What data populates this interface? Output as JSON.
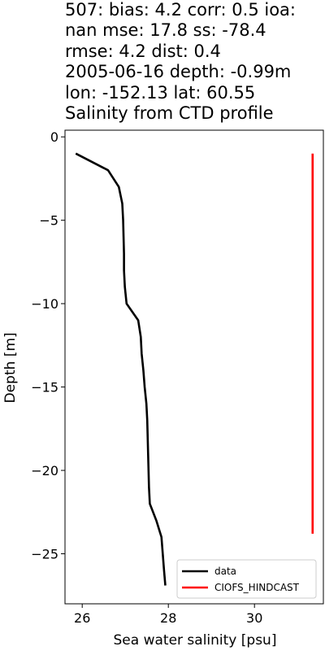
{
  "title_lines": [
    "507: bias: 4.2  corr: 0.5  ioa:",
    "nan  mse: 17.8  ss: -78.4",
    "rmse: 4.2  dist: 0.4",
    "2005-06-16 depth: -0.99m",
    "lon: -152.13 lat: 60.55",
    "Salinity from CTD profile"
  ],
  "chart_data": {
    "type": "line",
    "title": "Salinity from CTD profile",
    "xlabel": "Sea water salinity [psu]",
    "ylabel": "Depth [m]",
    "xlim": [
      25.6,
      31.6
    ],
    "ylim": [
      -28.0,
      0.4
    ],
    "xticks": [
      26,
      28,
      30
    ],
    "yticks": [
      0,
      -5,
      -10,
      -15,
      -20,
      -25
    ],
    "xtick_labels": [
      "26",
      "28",
      "30"
    ],
    "ytick_labels": [
      "0",
      "−5",
      "−10",
      "−15",
      "−20",
      "−25"
    ],
    "grid": false,
    "legend": "lower-right",
    "series": [
      {
        "name": "data",
        "color": "#000000",
        "points": [
          [
            25.85,
            -1.0
          ],
          [
            26.6,
            -2.0
          ],
          [
            26.85,
            -3.0
          ],
          [
            26.93,
            -4.0
          ],
          [
            26.95,
            -5.0
          ],
          [
            26.96,
            -6.0
          ],
          [
            26.97,
            -7.0
          ],
          [
            26.97,
            -8.0
          ],
          [
            26.99,
            -9.0
          ],
          [
            27.03,
            -10.0
          ],
          [
            27.3,
            -11.0
          ],
          [
            27.36,
            -12.0
          ],
          [
            27.38,
            -13.0
          ],
          [
            27.42,
            -14.0
          ],
          [
            27.45,
            -15.0
          ],
          [
            27.49,
            -16.0
          ],
          [
            27.51,
            -17.0
          ],
          [
            27.52,
            -18.0
          ],
          [
            27.53,
            -19.0
          ],
          [
            27.54,
            -20.0
          ],
          [
            27.55,
            -21.0
          ],
          [
            27.57,
            -22.0
          ],
          [
            27.72,
            -23.0
          ],
          [
            27.84,
            -24.0
          ],
          [
            27.87,
            -25.0
          ],
          [
            27.9,
            -26.0
          ],
          [
            27.93,
            -26.9
          ]
        ]
      },
      {
        "name": "CIOFS_HINDCAST",
        "color": "#ff0000",
        "points": [
          [
            31.35,
            -1.0
          ],
          [
            31.35,
            -23.8
          ]
        ]
      }
    ]
  }
}
